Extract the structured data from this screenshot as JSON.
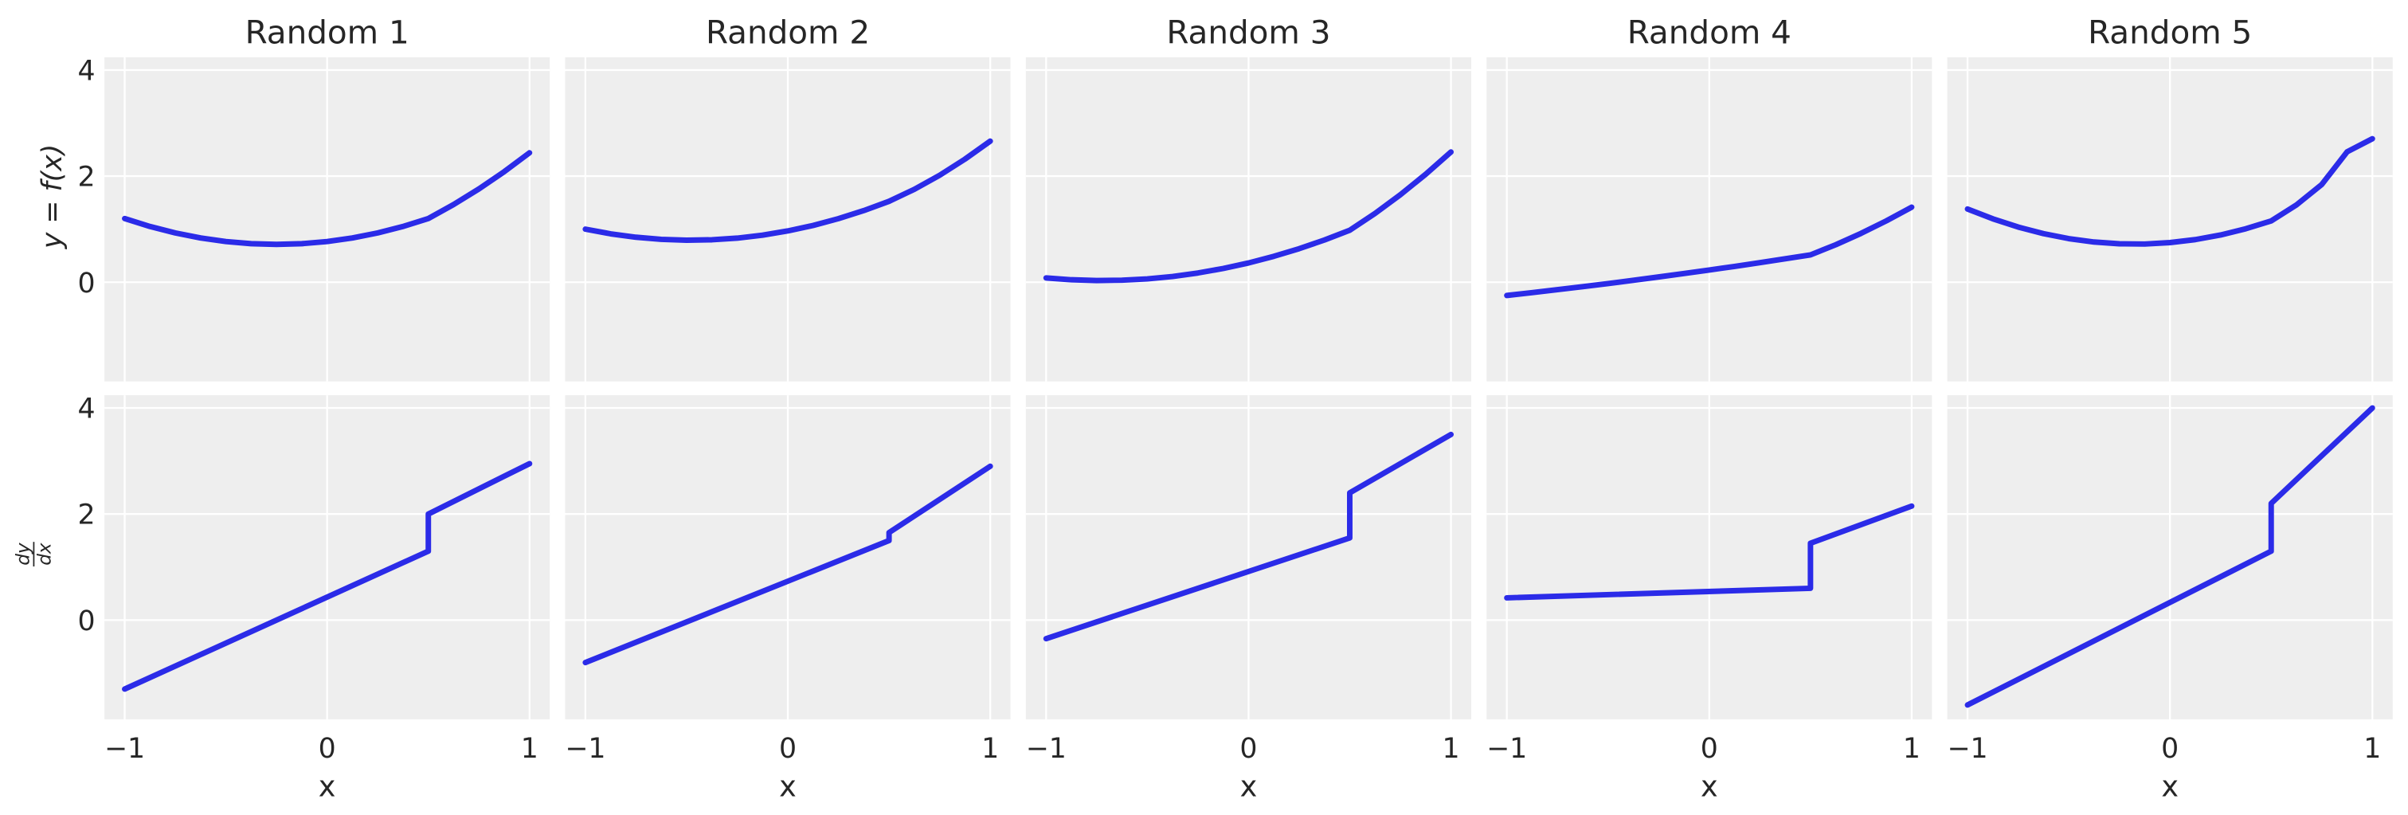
{
  "style": {
    "axes_bg": "#eeeeee",
    "grid": "#ffffff",
    "line": "#2b2be8",
    "text": "#262626"
  },
  "axes": {
    "xlim": [
      -1.1,
      1.1
    ],
    "ylim": [
      -1.87,
      4.24
    ],
    "xticks": [
      -1,
      0,
      1
    ],
    "xtick_labels": [
      "−1",
      "0",
      "1"
    ],
    "yticks": [
      0,
      2,
      4
    ],
    "ytick_labels": [
      "0",
      "2",
      "4"
    ],
    "grid": true
  },
  "chart_data": [
    {
      "type": "line",
      "row": "top",
      "title": "Random  1",
      "ylabel": "y = f(x)",
      "xlabel": "",
      "x": [
        -1,
        -0.875,
        -0.75,
        -0.625,
        -0.5,
        -0.375,
        -0.25,
        -0.125,
        0,
        0.125,
        0.25,
        0.375,
        0.5,
        0.625,
        0.75,
        0.875,
        1
      ],
      "y": [
        1.2,
        1.051,
        0.929,
        0.834,
        0.767,
        0.726,
        0.713,
        0.726,
        0.767,
        0.834,
        0.929,
        1.051,
        1.2,
        1.465,
        1.759,
        2.084,
        2.44
      ]
    },
    {
      "type": "line",
      "row": "top",
      "title": "Random  2",
      "xlabel": "",
      "x": [
        -1,
        -0.875,
        -0.75,
        -0.625,
        -0.5,
        -0.375,
        -0.25,
        -0.125,
        0,
        0.125,
        0.25,
        0.375,
        0.5,
        0.625,
        0.75,
        0.875,
        1
      ],
      "y": [
        1.0,
        0.912,
        0.848,
        0.808,
        0.792,
        0.8,
        0.831,
        0.887,
        0.967,
        1.07,
        1.198,
        1.35,
        1.525,
        1.751,
        2.016,
        2.32,
        2.66
      ]
    },
    {
      "type": "line",
      "row": "top",
      "title": "Random  3",
      "xlabel": "",
      "x": [
        -1,
        -0.875,
        -0.75,
        -0.625,
        -0.5,
        -0.375,
        -0.25,
        -0.125,
        0,
        0.125,
        0.25,
        0.375,
        0.5,
        0.625,
        0.75,
        0.875,
        1
      ],
      "y": [
        0.08,
        0.046,
        0.032,
        0.038,
        0.063,
        0.108,
        0.174,
        0.259,
        0.363,
        0.488,
        0.632,
        0.796,
        0.98,
        1.297,
        1.649,
        2.035,
        2.455
      ]
    },
    {
      "type": "line",
      "row": "top",
      "title": "Random  4",
      "xlabel": "",
      "x": [
        -1,
        -0.875,
        -0.75,
        -0.625,
        -0.5,
        -0.375,
        -0.25,
        -0.125,
        0,
        0.125,
        0.25,
        0.375,
        0.5,
        0.625,
        0.75,
        0.875,
        1
      ],
      "y": [
        -0.25,
        -0.197,
        -0.141,
        -0.084,
        -0.025,
        0.036,
        0.099,
        0.163,
        0.23,
        0.298,
        0.369,
        0.441,
        0.515,
        0.707,
        0.921,
        1.157,
        1.415
      ]
    },
    {
      "type": "line",
      "row": "top",
      "title": "Random  5",
      "xlabel": "",
      "x": [
        -1,
        -0.875,
        -0.75,
        -0.625,
        -0.5,
        -0.375,
        -0.25,
        -0.125,
        0,
        0.125,
        0.25,
        0.375,
        0.5,
        0.625,
        0.75,
        0.875,
        1
      ],
      "y": [
        1.38,
        1.195,
        1.04,
        0.916,
        0.822,
        0.758,
        0.724,
        0.72,
        0.747,
        0.803,
        0.89,
        1.008,
        1.155,
        1.458,
        1.843,
        2.458,
        2.705
      ]
    },
    {
      "type": "line",
      "row": "bottom",
      "ylabel": {
        "numerator": "dy",
        "denominator": "dx"
      },
      "xlabel": "x",
      "x": [
        -1,
        0.5,
        0.5,
        1
      ],
      "y": [
        -1.3,
        1.3,
        2.0,
        2.95
      ]
    },
    {
      "type": "line",
      "row": "bottom",
      "xlabel": "x",
      "x": [
        -1,
        0.5,
        0.5,
        1
      ],
      "y": [
        -0.8,
        1.5,
        1.65,
        2.9
      ]
    },
    {
      "type": "line",
      "row": "bottom",
      "xlabel": "x",
      "x": [
        -1,
        0.5,
        0.5,
        1
      ],
      "y": [
        -0.35,
        1.55,
        2.4,
        3.5
      ]
    },
    {
      "type": "line",
      "row": "bottom",
      "xlabel": "x",
      "x": [
        -1,
        0.5,
        0.5,
        1
      ],
      "y": [
        0.42,
        0.6,
        1.45,
        2.15
      ]
    },
    {
      "type": "line",
      "row": "bottom",
      "xlabel": "x",
      "x": [
        -1,
        0.5,
        0.5,
        1
      ],
      "y": [
        -1.6,
        1.3,
        2.2,
        4.0
      ]
    }
  ]
}
